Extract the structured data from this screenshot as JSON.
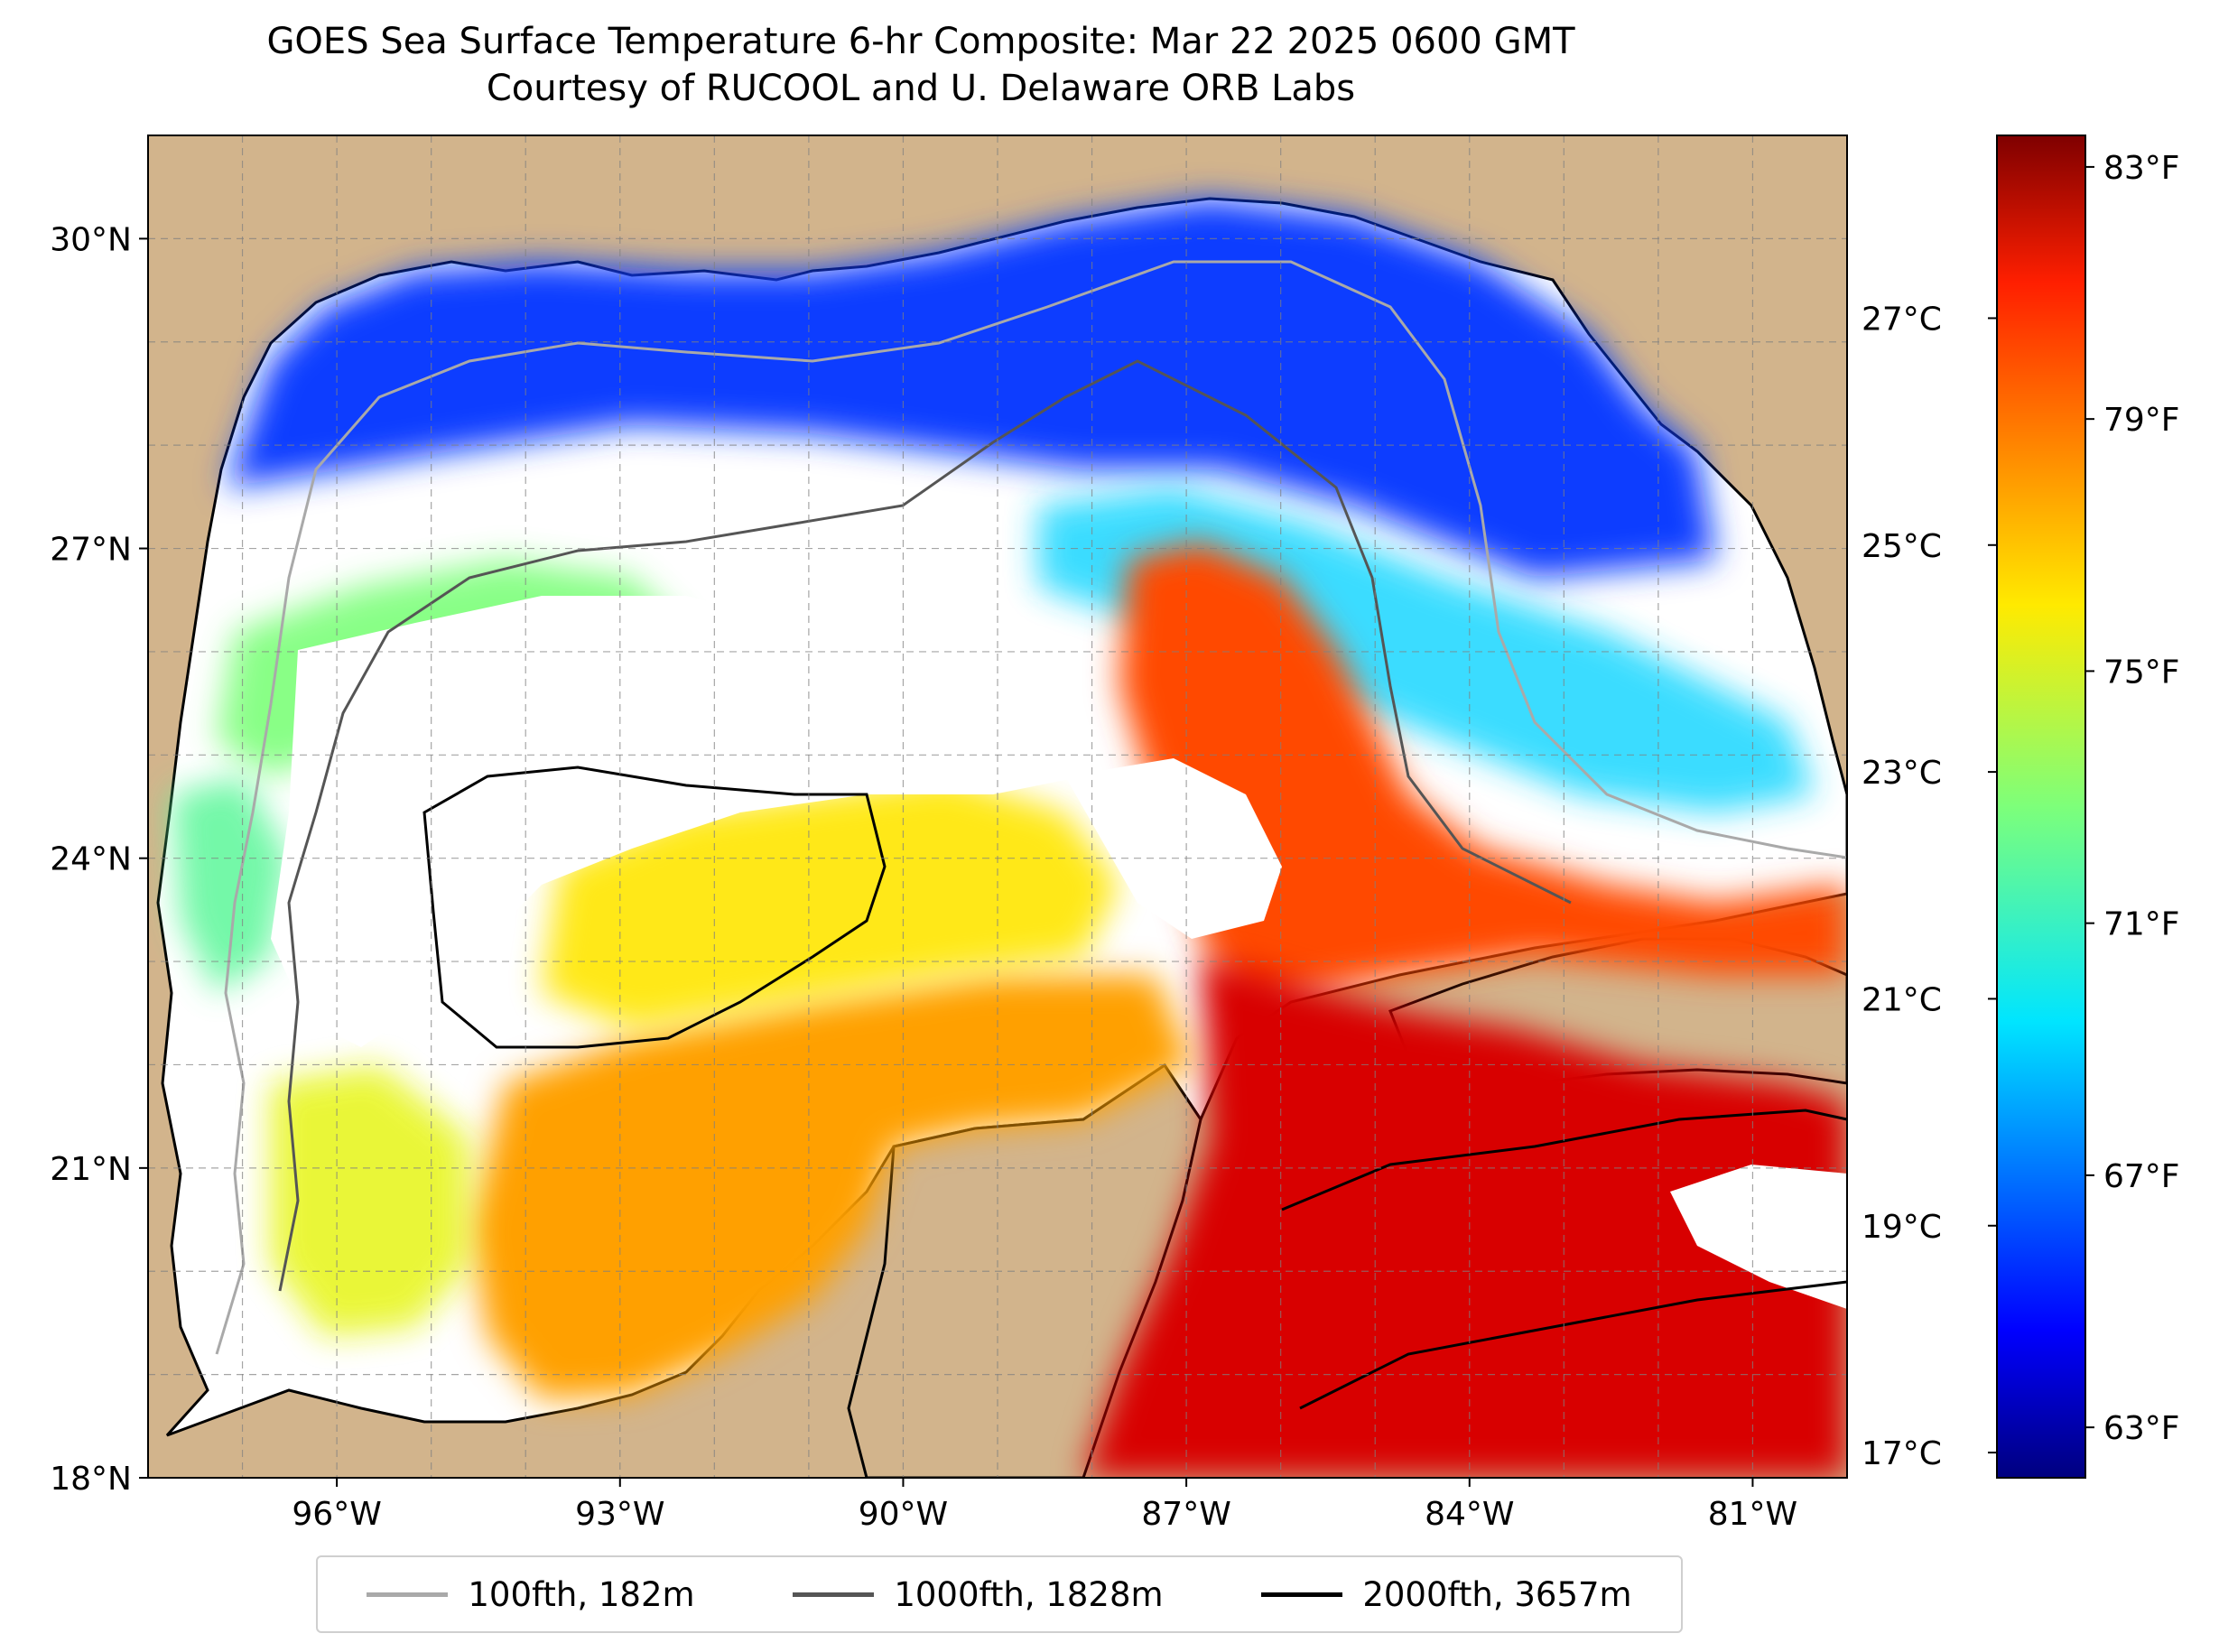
{
  "title": {
    "line1": "GOES Sea Surface Temperature 6-hr Composite: Mar 22 2025 0600 GMT",
    "line2": "Courtesy of RUCOOL and U. Delaware ORB Labs"
  },
  "map": {
    "lon_range": [
      -98,
      -80
    ],
    "lat_range": [
      18,
      31
    ],
    "lat_ticks": [
      {
        "value": 18,
        "label": "18°N"
      },
      {
        "value": 21,
        "label": "21°N"
      },
      {
        "value": 24,
        "label": "24°N"
      },
      {
        "value": 27,
        "label": "27°N"
      },
      {
        "value": 30,
        "label": "30°N"
      }
    ],
    "lon_ticks": [
      {
        "value": -96,
        "label": "96°W"
      },
      {
        "value": -93,
        "label": "93°W"
      },
      {
        "value": -90,
        "label": "90°W"
      },
      {
        "value": -87,
        "label": "87°W"
      },
      {
        "value": -84,
        "label": "84°W"
      },
      {
        "value": -81,
        "label": "81°W"
      }
    ],
    "land_color": "#d2b48c",
    "gridlines": "dashed"
  },
  "colorbar": {
    "colormap": "jet",
    "range_f": [
      62.2,
      83.5
    ],
    "fahrenheit_ticks": [
      {
        "value": 63,
        "label": "63°F"
      },
      {
        "value": 67,
        "label": "67°F"
      },
      {
        "value": 71,
        "label": "71°F"
      },
      {
        "value": 75,
        "label": "75°F"
      },
      {
        "value": 79,
        "label": "79°F"
      },
      {
        "value": 83,
        "label": "83°F"
      }
    ],
    "celsius_ticks": [
      {
        "value": 17,
        "label": "17°C"
      },
      {
        "value": 19,
        "label": "19°C"
      },
      {
        "value": 21,
        "label": "21°C"
      },
      {
        "value": 23,
        "label": "23°C"
      },
      {
        "value": 25,
        "label": "25°C"
      },
      {
        "value": 27,
        "label": "27°C"
      }
    ]
  },
  "legend": {
    "placement": "bottom-center",
    "items": [
      {
        "label": "100fth, 182m",
        "color": "#a9a9a9"
      },
      {
        "label": "1000fth, 1828m",
        "color": "#555555"
      },
      {
        "label": "2000fth, 3657m",
        "color": "#000000"
      }
    ]
  }
}
